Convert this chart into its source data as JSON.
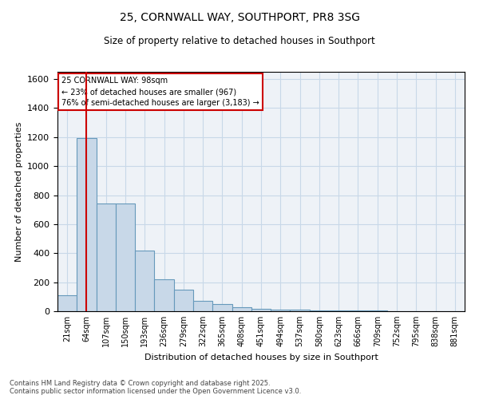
{
  "title1": "25, CORNWALL WAY, SOUTHPORT, PR8 3SG",
  "title2": "Size of property relative to detached houses in Southport",
  "xlabel": "Distribution of detached houses by size in Southport",
  "ylabel": "Number of detached properties",
  "bar_color": "#c8d8e8",
  "bar_edge_color": "#6699bb",
  "grid_color": "#c8d8e8",
  "background_color": "#eef2f7",
  "categories": [
    "21sqm",
    "64sqm",
    "107sqm",
    "150sqm",
    "193sqm",
    "236sqm",
    "279sqm",
    "322sqm",
    "365sqm",
    "408sqm",
    "451sqm",
    "494sqm",
    "537sqm",
    "580sqm",
    "623sqm",
    "666sqm",
    "709sqm",
    "752sqm",
    "795sqm",
    "838sqm",
    "881sqm"
  ],
  "bar_heights": [
    110,
    1195,
    740,
    740,
    420,
    220,
    148,
    70,
    50,
    30,
    15,
    10,
    10,
    5,
    5,
    5,
    5,
    0,
    0,
    0,
    0
  ],
  "ylim": [
    0,
    1650
  ],
  "yticks": [
    0,
    200,
    400,
    600,
    800,
    1000,
    1200,
    1400,
    1600
  ],
  "red_line_x": 1.5,
  "annotation_title": "25 CORNWALL WAY: 98sqm",
  "annotation_line1": "← 23% of detached houses are smaller (967)",
  "annotation_line2": "76% of semi-detached houses are larger (3,183) →",
  "annotation_box_color": "#ffffff",
  "annotation_box_edge": "#cc0000",
  "red_line_color": "#cc0000",
  "footer1": "Contains HM Land Registry data © Crown copyright and database right 2025.",
  "footer2": "Contains public sector information licensed under the Open Government Licence v3.0."
}
